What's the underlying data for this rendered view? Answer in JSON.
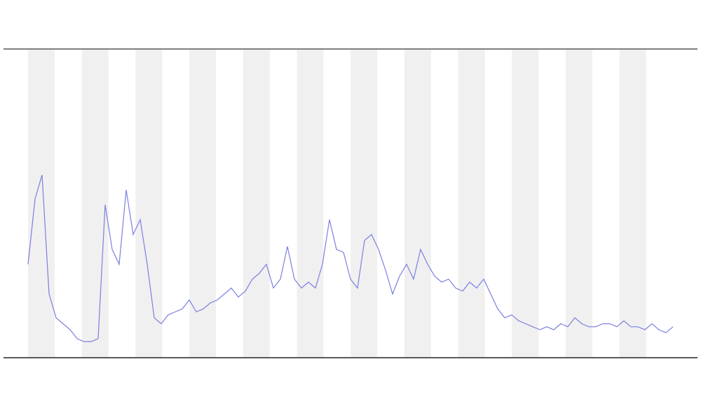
{
  "chart_data": {
    "type": "line",
    "x": [
      0,
      1,
      2,
      3,
      4,
      5,
      6,
      7,
      8,
      9,
      10,
      11,
      12,
      13,
      14,
      15,
      16,
      17,
      18,
      19,
      20,
      21,
      22,
      23,
      24,
      25,
      26,
      27,
      28,
      29,
      30,
      31,
      32,
      33,
      34,
      35,
      36,
      37,
      38,
      39,
      40,
      41,
      42,
      43,
      44,
      45,
      46,
      47,
      48,
      49,
      50,
      51,
      52,
      53,
      54,
      55,
      56,
      57,
      58,
      59,
      60,
      61,
      62,
      63,
      64,
      65,
      66,
      67,
      68,
      69,
      70,
      71,
      72,
      73,
      74,
      75,
      76,
      77,
      78,
      79,
      80,
      81,
      82,
      83,
      84,
      85,
      86,
      87,
      88,
      89,
      90,
      91,
      92
    ],
    "xlim": [
      0,
      92
    ],
    "ylim": [
      0,
      100
    ],
    "series": [
      {
        "color": "#7b7fe0",
        "values": [
          30,
          52,
          60,
          20,
          12,
          10,
          8,
          5,
          4,
          4,
          5,
          50,
          35,
          30,
          55,
          40,
          45,
          30,
          12,
          10,
          13,
          14,
          15,
          18,
          14,
          15,
          17,
          18,
          20,
          22,
          19,
          21,
          25,
          27,
          30,
          22,
          25,
          36,
          25,
          22,
          24,
          22,
          30,
          45,
          35,
          34,
          25,
          22,
          38,
          40,
          35,
          28,
          20,
          26,
          30,
          25,
          35,
          30,
          26,
          24,
          25,
          22,
          21,
          24,
          22,
          25,
          20,
          15,
          12,
          13,
          11,
          10,
          9,
          8,
          9,
          8,
          10,
          9,
          12,
          10,
          9,
          9,
          10,
          10,
          9,
          11,
          9,
          9,
          8,
          10,
          8,
          7,
          9
        ]
      }
    ]
  }
}
